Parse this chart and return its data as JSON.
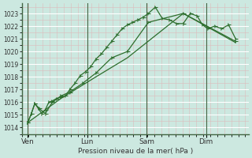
{
  "bg_color": "#cce8e0",
  "plot_bg_color": "#cce8e0",
  "grid_color_major": "#ffffff",
  "grid_color_minor": "#ddbbbb",
  "line_color": "#2d6e2d",
  "xlabel": "Pression niveau de la mer( hPa )",
  "ylim": [
    1013.5,
    1023.8
  ],
  "yticks": [
    1014,
    1015,
    1016,
    1017,
    1018,
    1019,
    1020,
    1021,
    1022,
    1023
  ],
  "day_positions": [
    62,
    130,
    198,
    266
  ],
  "day_labels": [
    "Ven",
    "Lun",
    "Sam",
    "Dim"
  ],
  "xlim": [
    55,
    315
  ],
  "series1_x": [
    62,
    66,
    70,
    74,
    78,
    82,
    86,
    90,
    95,
    100,
    105,
    110,
    116,
    122,
    128,
    134,
    140,
    146,
    152,
    158,
    164,
    170,
    176,
    182,
    188,
    194,
    200,
    208,
    216,
    224,
    232,
    240,
    248,
    256,
    262,
    268,
    276,
    284,
    292,
    300
  ],
  "series1_y": [
    1014.4,
    1015.1,
    1015.9,
    1015.5,
    1015.1,
    1015.4,
    1016.0,
    1016.1,
    1016.3,
    1016.4,
    1016.5,
    1017.0,
    1017.5,
    1018.1,
    1018.4,
    1018.8,
    1019.4,
    1019.8,
    1020.3,
    1020.8,
    1021.3,
    1021.8,
    1022.1,
    1022.3,
    1022.5,
    1022.7,
    1023.0,
    1023.5,
    1022.6,
    1022.5,
    1022.2,
    1022.2,
    1023.0,
    1022.8,
    1022.1,
    1021.8,
    1022.0,
    1021.8,
    1022.1,
    1021.0
  ],
  "series2_x": [
    62,
    66,
    70,
    75,
    82,
    90,
    100,
    110,
    125,
    140,
    158,
    176,
    200,
    240,
    300
  ],
  "series2_y": [
    1014.4,
    1015.1,
    1015.9,
    1015.5,
    1015.1,
    1016.0,
    1016.5,
    1016.8,
    1017.5,
    1018.3,
    1019.5,
    1020.0,
    1022.3,
    1023.0,
    1020.8
  ],
  "series3_x": [
    62,
    100,
    140,
    176,
    240,
    300
  ],
  "series3_y": [
    1014.4,
    1016.3,
    1018.0,
    1019.5,
    1023.0,
    1020.7
  ]
}
